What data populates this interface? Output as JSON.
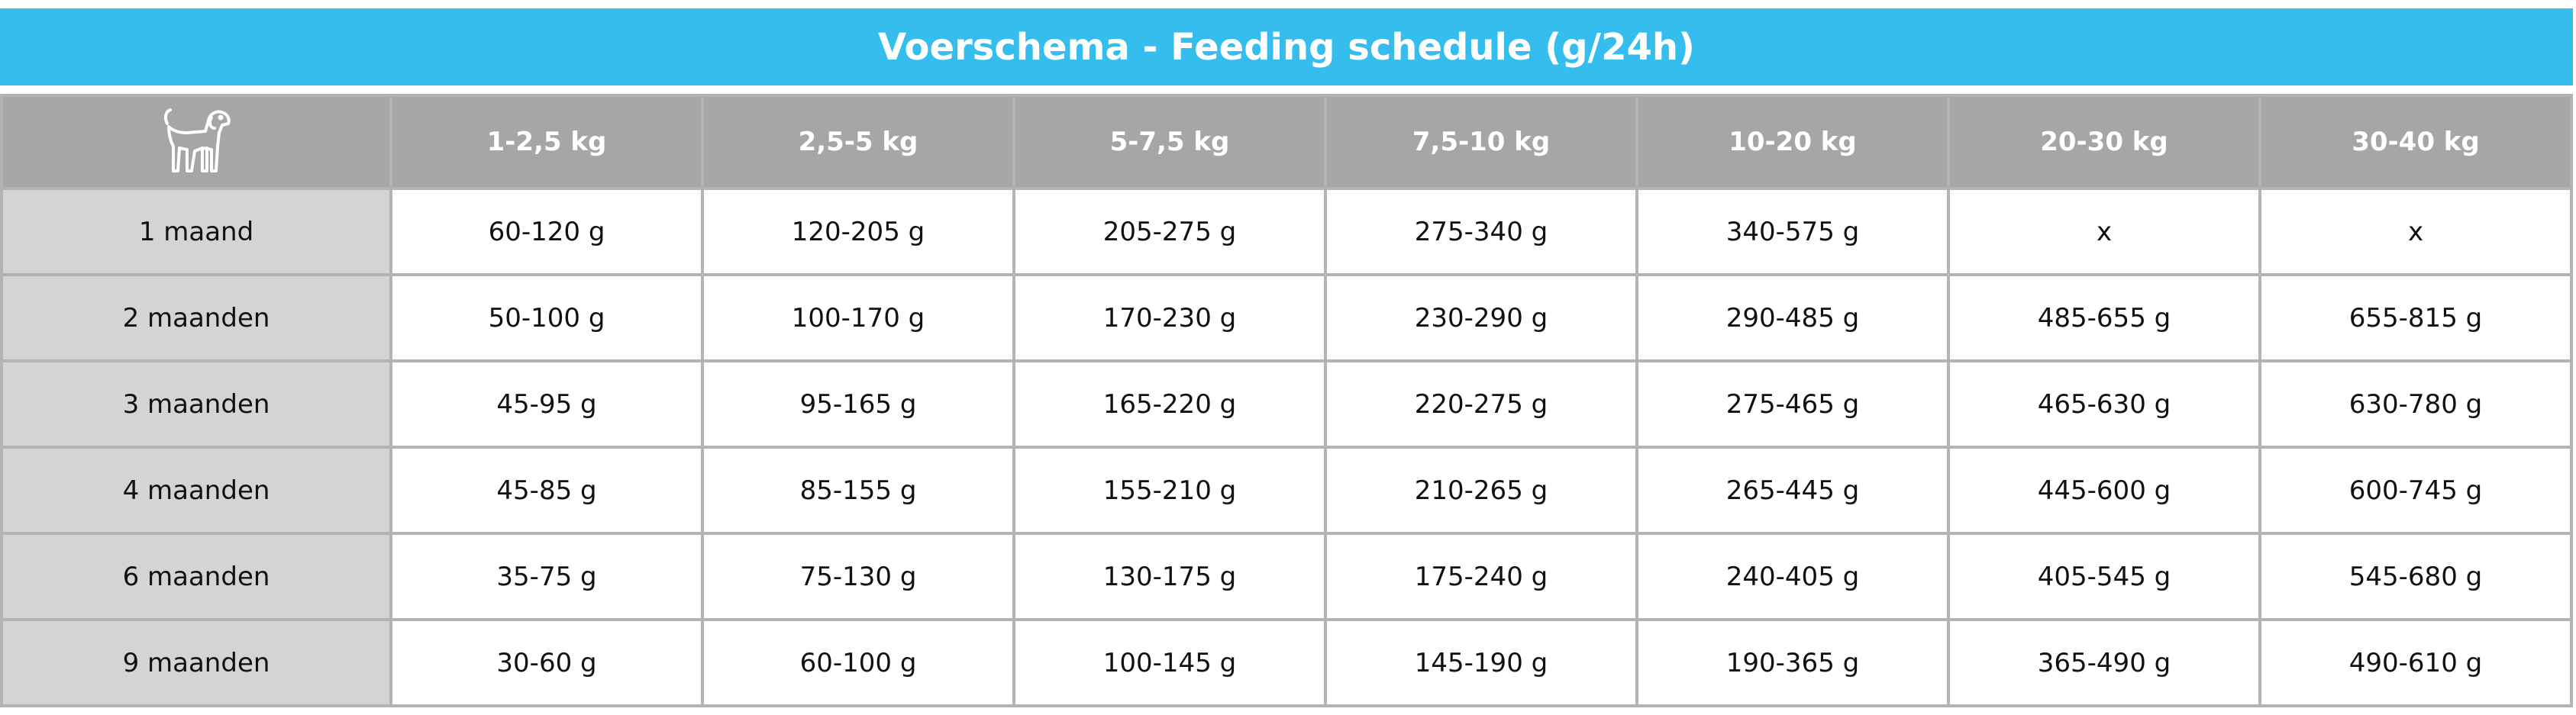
{
  "header": {
    "title": "Voerschema - Feeding schedule (g/24h)"
  },
  "table": {
    "columns": [
      "1-2,5 kg",
      "2,5-5 kg",
      "5-7,5 kg",
      "7,5-10 kg",
      "10-20 kg",
      "20-30 kg",
      "30-40 kg"
    ],
    "rows": [
      {
        "label": "1 maand",
        "cells": [
          "60-120 g",
          "120-205 g",
          "205-275 g",
          "275-340 g",
          "340-575 g",
          "x",
          "x"
        ]
      },
      {
        "label": "2 maanden",
        "cells": [
          "50-100 g",
          "100-170 g",
          "170-230 g",
          "230-290 g",
          "290-485 g",
          "485-655 g",
          "655-815 g"
        ]
      },
      {
        "label": "3 maanden",
        "cells": [
          "45-95 g",
          "95-165 g",
          "165-220 g",
          "220-275 g",
          "275-465 g",
          "465-630 g",
          "630-780 g"
        ]
      },
      {
        "label": "4 maanden",
        "cells": [
          "45-85 g",
          "85-155 g",
          "155-210 g",
          "210-265 g",
          "265-445 g",
          "445-600 g",
          "600-745 g"
        ]
      },
      {
        "label": "6 maanden",
        "cells": [
          "35-75 g",
          "75-130 g",
          "130-175 g",
          "175-240 g",
          "240-405 g",
          "405-545 g",
          "545-680 g"
        ]
      },
      {
        "label": "9 maanden",
        "cells": [
          "30-60 g",
          "60-100 g",
          "100-145 g",
          "145-190 g",
          "190-365 g",
          "365-490 g",
          "490-610 g"
        ]
      }
    ]
  }
}
